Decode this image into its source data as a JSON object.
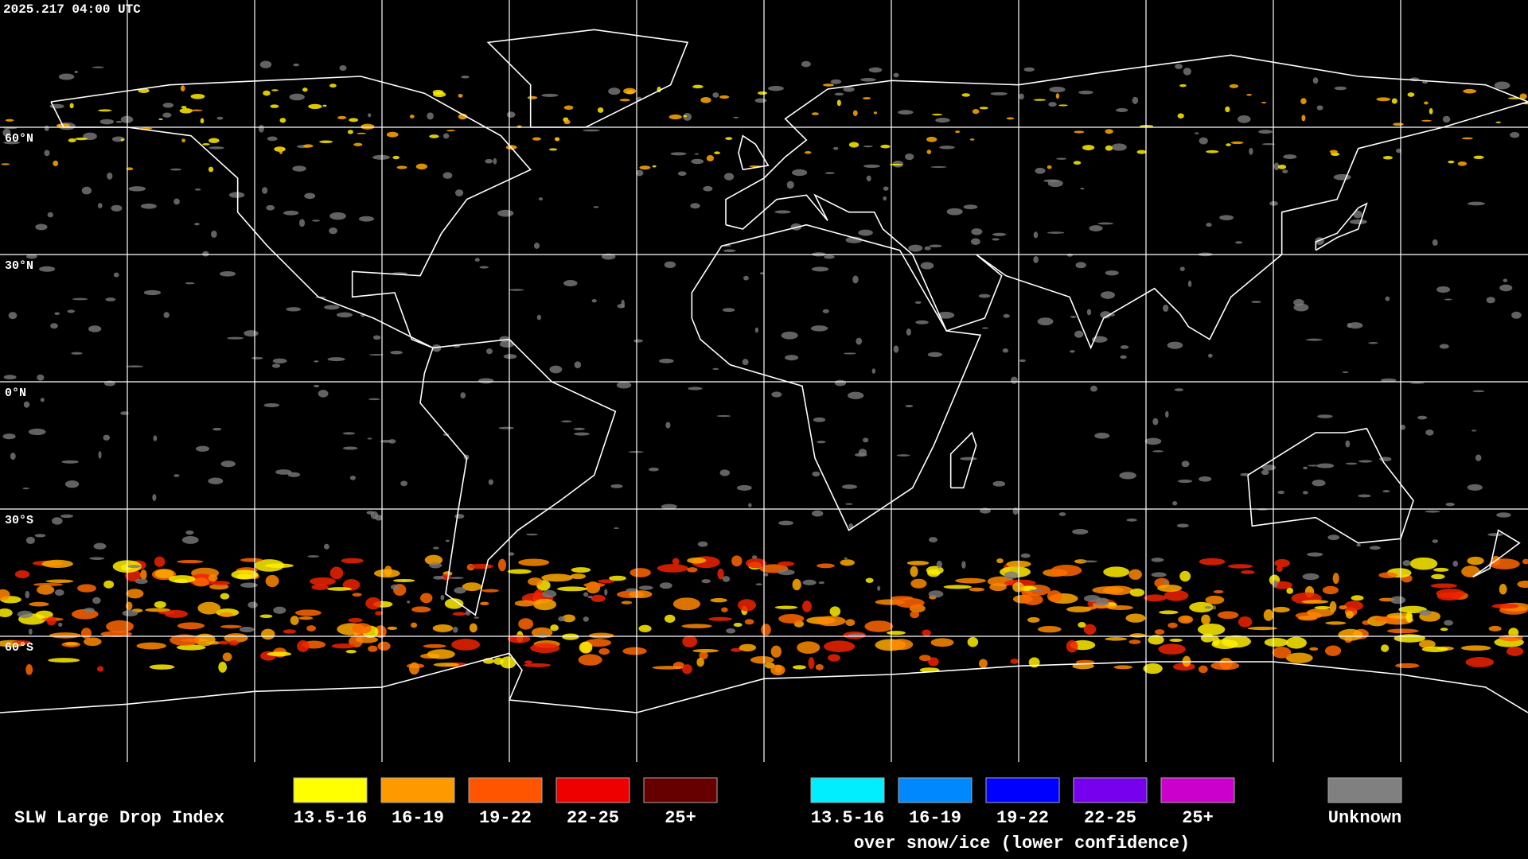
{
  "header": {
    "timestamp": "2025.217 04:00 UTC"
  },
  "map": {
    "lat_labels": [
      "60°N",
      "30°N",
      "0°N",
      "30°S",
      "60°S"
    ]
  },
  "legend": {
    "title": "SLW Large Drop Index",
    "items": [
      {
        "label": "13.5-16",
        "color": "#ffff00"
      },
      {
        "label": "16-19",
        "color": "#ff9900"
      },
      {
        "label": "19-22",
        "color": "#ff5500"
      },
      {
        "label": "22-25",
        "color": "#ee0000"
      },
      {
        "label": "25+",
        "color": "#660000"
      }
    ],
    "snow_items": [
      {
        "label": "13.5-16",
        "color": "#00eeff"
      },
      {
        "label": "16-19",
        "color": "#0088ff"
      },
      {
        "label": "19-22",
        "color": "#0000ff"
      },
      {
        "label": "22-25",
        "color": "#7700ee"
      },
      {
        "label": "25+",
        "color": "#cc00cc"
      }
    ],
    "snow_caption": "over snow/ice (lower confidence)",
    "unknown": {
      "label": "Unknown",
      "color": "#808080"
    }
  }
}
